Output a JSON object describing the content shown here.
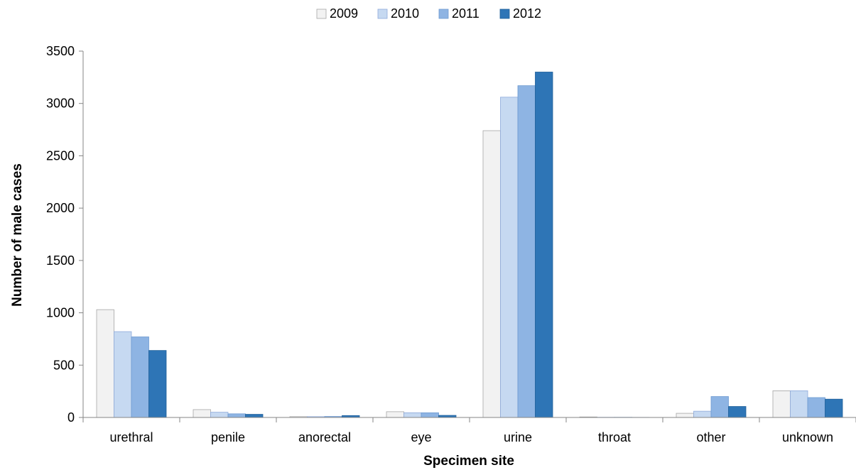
{
  "chart_data": {
    "type": "bar",
    "title": "",
    "xlabel": "Specimen site",
    "ylabel": "Number of male cases",
    "ylim": [
      0,
      3500
    ],
    "yticks": [
      0,
      500,
      1000,
      1500,
      2000,
      2500,
      3000,
      3500
    ],
    "grid": false,
    "legend_position": "top",
    "categories": [
      "urethral",
      "penile",
      "anorectal",
      "eye",
      "urine",
      "throat",
      "other",
      "unknown"
    ],
    "series": [
      {
        "name": "2009",
        "color": "#f2f2f2",
        "stroke": "#a6a6a6",
        "values": [
          1030,
          75,
          8,
          55,
          2740,
          5,
          40,
          255
        ]
      },
      {
        "name": "2010",
        "color": "#c6d9f1",
        "stroke": "#8eaadb",
        "values": [
          820,
          50,
          8,
          45,
          3060,
          2,
          60,
          255
        ]
      },
      {
        "name": "2011",
        "color": "#8eb4e3",
        "stroke": "#6f9bd1",
        "values": [
          770,
          35,
          10,
          45,
          3170,
          2,
          200,
          190
        ]
      },
      {
        "name": "2012",
        "color": "#2e75b6",
        "stroke": "#1f5f9a",
        "values": [
          640,
          30,
          18,
          20,
          3300,
          1,
          105,
          175
        ]
      }
    ]
  }
}
